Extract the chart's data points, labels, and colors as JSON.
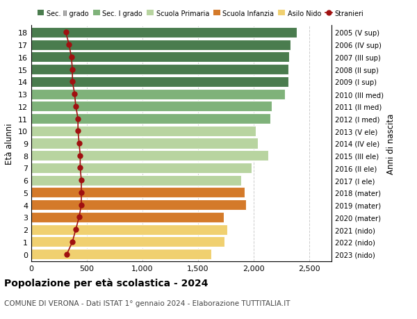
{
  "ages": [
    18,
    17,
    16,
    15,
    14,
    13,
    12,
    11,
    10,
    9,
    8,
    7,
    6,
    5,
    4,
    3,
    2,
    1,
    0
  ],
  "right_labels": [
    "2005 (V sup)",
    "2006 (IV sup)",
    "2007 (III sup)",
    "2008 (II sup)",
    "2009 (I sup)",
    "2010 (III med)",
    "2011 (II med)",
    "2012 (I med)",
    "2013 (V ele)",
    "2014 (IV ele)",
    "2015 (III ele)",
    "2016 (II ele)",
    "2017 (I ele)",
    "2018 (mater)",
    "2019 (mater)",
    "2020 (mater)",
    "2021 (nido)",
    "2022 (nido)",
    "2023 (nido)"
  ],
  "bar_values": [
    2390,
    2330,
    2320,
    2310,
    2310,
    2280,
    2160,
    2150,
    2020,
    2040,
    2130,
    1980,
    1890,
    1920,
    1930,
    1730,
    1760,
    1740,
    1620
  ],
  "stranieri_values": [
    310,
    340,
    360,
    370,
    370,
    390,
    400,
    420,
    420,
    430,
    440,
    440,
    450,
    450,
    450,
    430,
    400,
    370,
    320
  ],
  "bar_colors": [
    "#4a7c4e",
    "#4a7c4e",
    "#4a7c4e",
    "#4a7c4e",
    "#4a7c4e",
    "#7fb27a",
    "#7fb27a",
    "#7fb27a",
    "#b8d4a0",
    "#b8d4a0",
    "#b8d4a0",
    "#b8d4a0",
    "#b8d4a0",
    "#d47a2a",
    "#d47a2a",
    "#d47a2a",
    "#f0d070",
    "#f0d070",
    "#f0d070"
  ],
  "legend_labels": [
    "Sec. II grado",
    "Sec. I grado",
    "Scuola Primaria",
    "Scuola Infanzia",
    "Asilo Nido",
    "Stranieri"
  ],
  "legend_colors": [
    "#4a7c4e",
    "#7fb27a",
    "#b8d4a0",
    "#d47a2a",
    "#f0d070",
    "#a01010"
  ],
  "ylabel": "Età alunni",
  "right_ylabel": "Anni di nascita",
  "title": "Popolazione per età scolastica - 2024",
  "subtitle": "COMUNE DI VERONA - Dati ISTAT 1° gennaio 2024 - Elaborazione TUTTITALIA.IT",
  "xlim": [
    0,
    2700
  ],
  "background_color": "#ffffff",
  "bar_height": 0.85,
  "stranieri_color": "#a01010",
  "stranieri_markersize": 5,
  "stranieri_linewidth": 1.2,
  "grid_color": "#cccccc"
}
